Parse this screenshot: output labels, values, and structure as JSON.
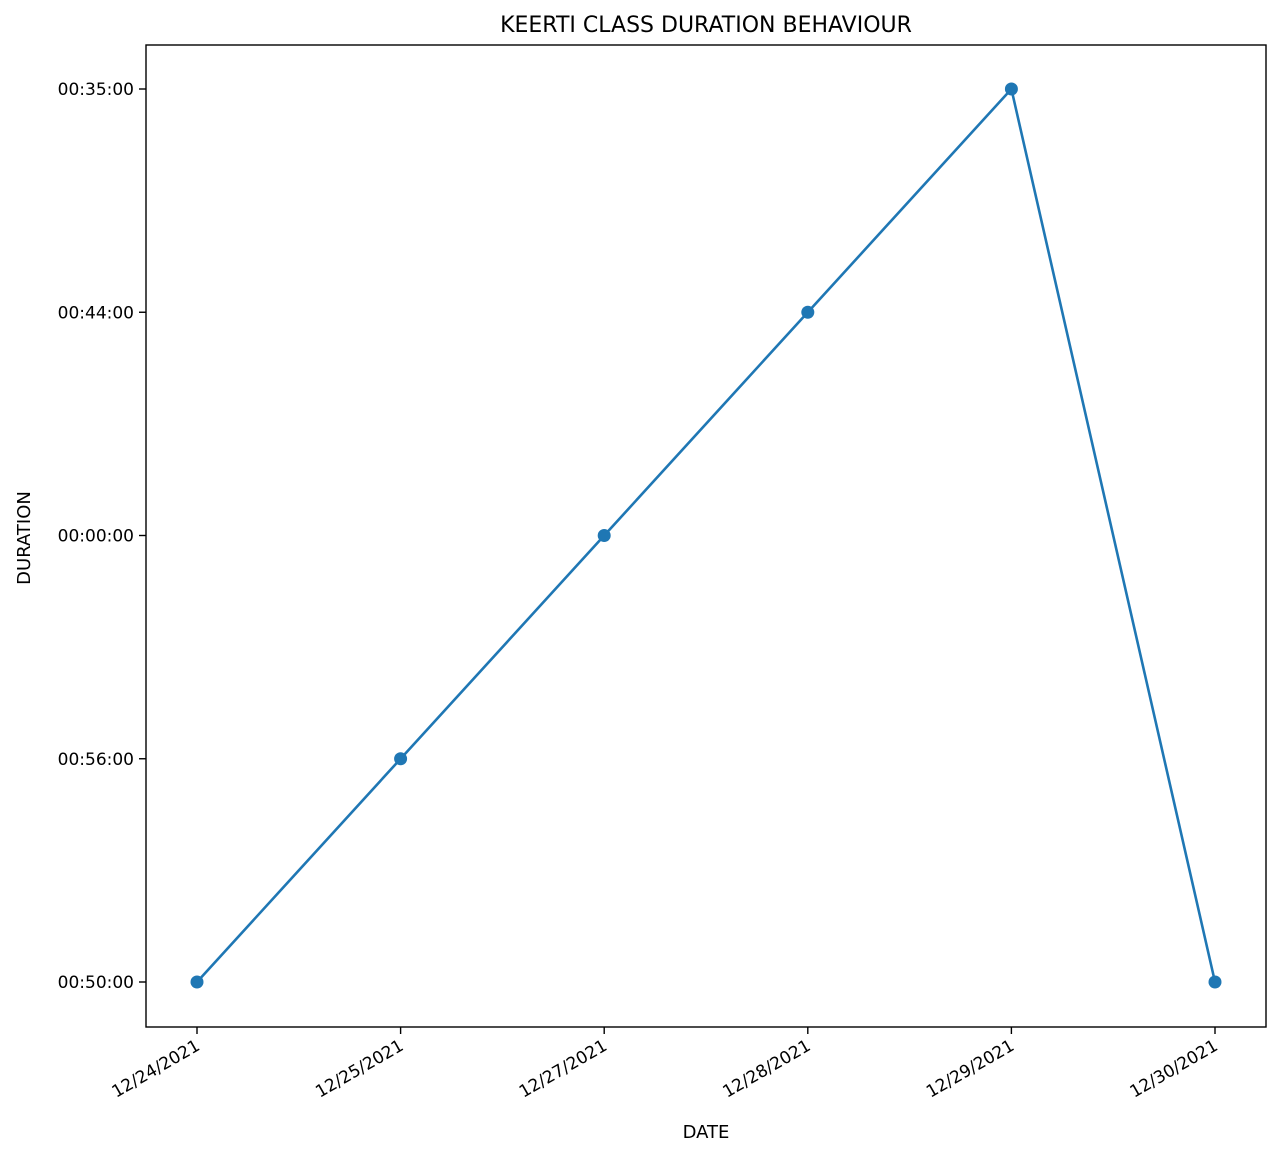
{
  "chart_data": {
    "type": "line",
    "title": "KEERTI CLASS DURATION BEHAVIOUR",
    "xlabel": "DATE",
    "ylabel": "DURATION",
    "categories": [
      "12/24/2021",
      "12/25/2021",
      "12/27/2021",
      "12/28/2021",
      "12/29/2021",
      "12/30/2021"
    ],
    "y_categories": [
      "00:50:00",
      "00:56:00",
      "00:00:00",
      "00:44:00",
      "00:35:00"
    ],
    "series": [
      {
        "color": "#1f77b4",
        "marker": "circle",
        "values": [
          "00:50:00",
          "00:56:00",
          "00:00:00",
          "00:44:00",
          "00:35:00",
          "00:50:00"
        ]
      }
    ],
    "grid": false,
    "legend": "none"
  }
}
